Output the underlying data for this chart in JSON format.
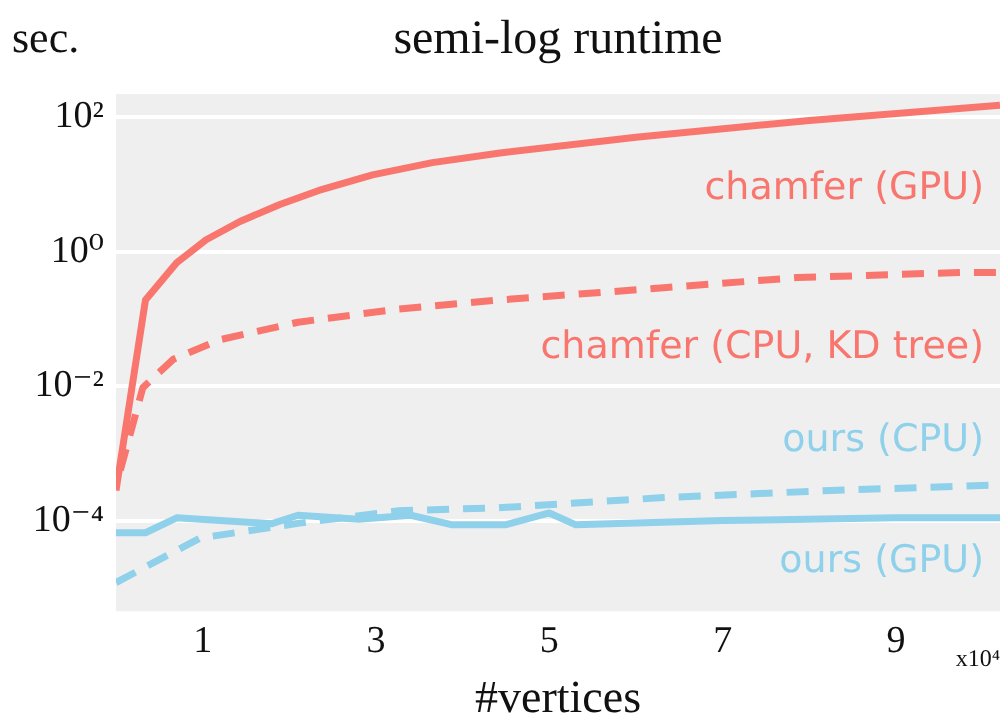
{
  "chart_data": {
    "type": "line",
    "title": "semi-log runtime",
    "ylabel": "sec.",
    "xlabel": "#vertices",
    "log": "y",
    "grid": "y",
    "marker": "none",
    "xlim": [
      0,
      10.2
    ],
    "xticks": [
      1,
      3,
      5,
      7,
      9
    ],
    "ylim": [
      4.5e-06,
      220
    ],
    "yticks": [
      {
        "value": 100,
        "label": "10²"
      },
      {
        "value": 1,
        "label": "10⁰"
      },
      {
        "value": 0.01,
        "label": "10⁻²"
      },
      {
        "value": 0.0001,
        "label": "10⁻⁴"
      }
    ],
    "annotations": [
      "x10⁴"
    ],
    "series": [
      {
        "name": "chamfer (GPU)",
        "color": "#f8766d",
        "line_style": "solid",
        "x": [
          0,
          0.34,
          0.7,
          1.04,
          1.43,
          1.89,
          2.34,
          2.96,
          3.65,
          4.41,
          6,
          8,
          10.2
        ],
        "values": [
          0.00028,
          0.19,
          0.68,
          1.5,
          2.8,
          5,
          8.1,
          13.8,
          21,
          29,
          50,
          89,
          150
        ]
      },
      {
        "name": "chamfer (CPU, KD tree)",
        "color": "#f8766d",
        "line_style": "dashed",
        "x": [
          0.05,
          0.31,
          0.66,
          1.2,
          2.1,
          3.26,
          4.41,
          6.32,
          7.86,
          9.77,
          10.2
        ],
        "values": [
          0.00056,
          0.0095,
          0.025,
          0.049,
          0.089,
          0.14,
          0.19,
          0.29,
          0.41,
          0.49,
          0.49
        ]
      },
      {
        "name": "ours (CPU)",
        "color": "#8fd0ea",
        "line_style": "dashed",
        "x": [
          0,
          0.97,
          2.1,
          3.26,
          4.41,
          6.32,
          8.24,
          10.2
        ],
        "values": [
          1.2e-05,
          5.5e-05,
          9.1e-05,
          0.00014,
          0.000155,
          0.00022,
          0.00028,
          0.00034
        ]
      },
      {
        "name": "ours (GPU)",
        "color": "#8fd0ea",
        "line_style": "solid",
        "x": [
          0,
          0.34,
          0.7,
          1.8,
          2.1,
          2.8,
          3.4,
          3.87,
          4.5,
          5,
          5.3,
          7,
          9,
          10.2
        ],
        "values": [
          6.6e-05,
          6.6e-05,
          0.00011,
          9e-05,
          0.00012,
          0.000105,
          0.00012,
          8.7e-05,
          8.7e-05,
          0.00013,
          8.7e-05,
          0.0001,
          0.00011,
          0.00011
        ]
      }
    ]
  }
}
